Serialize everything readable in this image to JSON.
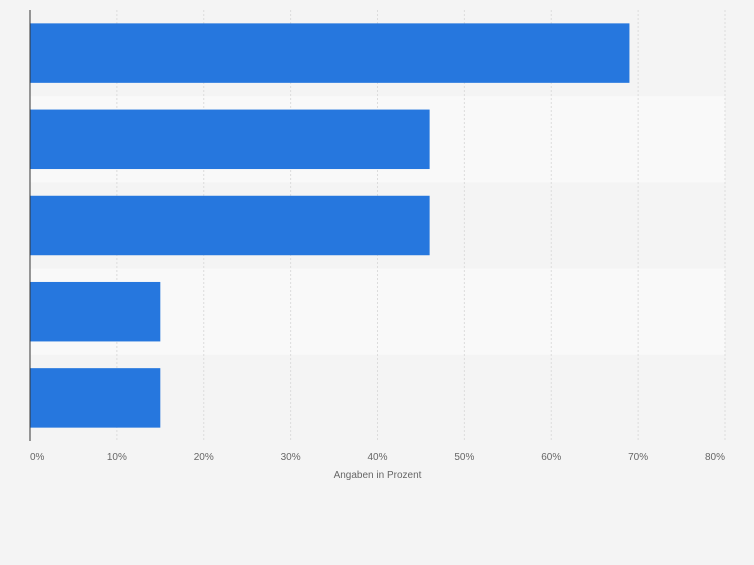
{
  "chart_data": {
    "type": "bar",
    "orientation": "horizontal",
    "categories": [
      "",
      "",
      "",
      "",
      ""
    ],
    "values": [
      69,
      46,
      46,
      15,
      15
    ],
    "xlim": [
      0,
      80
    ],
    "xticks": [
      "0%",
      "10%",
      "20%",
      "30%",
      "40%",
      "50%",
      "60%",
      "70%",
      "80%"
    ],
    "xlabel": "Angaben in Prozent",
    "ylabel": "",
    "title": "",
    "grid": "vertical dashed",
    "legend": "none",
    "colors": {
      "bar": "#2677de",
      "band_light": "#f9f9f9",
      "band_dark": "#f4f4f4",
      "grid": "#dcdcdc",
      "axis": "#333333",
      "tick_text": "#666666"
    }
  }
}
